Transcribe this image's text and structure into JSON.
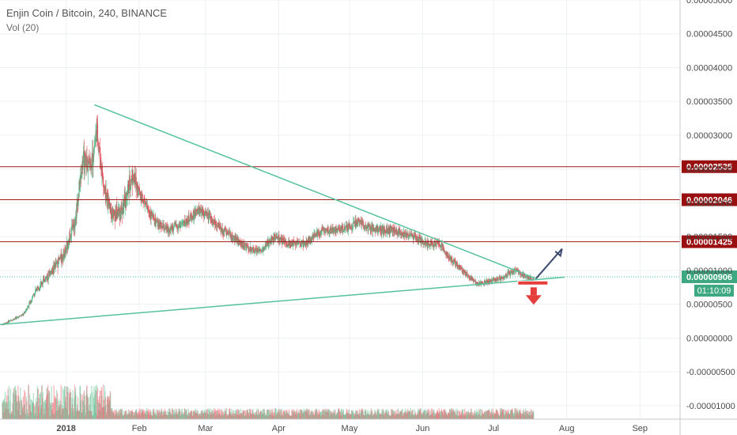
{
  "header": {
    "title": "Enjin Coin / Bitcoin, 240, BINANCE",
    "vol_label": "Vol (20)"
  },
  "colors": {
    "up": "#53b987",
    "down": "#eb4d5c",
    "trend": "#56c29c",
    "level": "#9c1a1a",
    "level_label_bg": "#990f0f",
    "price_label_bg": "#3ea882",
    "grid": "#eef1f4",
    "up_arrow": "#3c4a70",
    "down_arrow": "#e63d3d"
  },
  "chart_data": {
    "type": "candlestick",
    "ylim": [
      -1.2e-06,
      5e-06
    ],
    "y_ticks": [
      "0.00005000",
      "0.00004500",
      "0.00004000",
      "0.00003500",
      "0.00003000",
      "0.00002500",
      "0.00002000",
      "0.00001500",
      "0.00001000",
      "0.00000500",
      "0.00000000",
      "-0.00000500",
      "-0.00001000"
    ],
    "y_tick_values": [
      5e-06,
      4.5e-06,
      4e-06,
      3.5e-06,
      3e-06,
      2.5e-06,
      2e-06,
      1.5e-06,
      1e-06,
      5e-07,
      0.0,
      -5e-07,
      -1e-06
    ],
    "x_ticks": [
      "2018",
      "Feb",
      "Mar",
      "Apr",
      "May",
      "Jun",
      "Jul",
      "Aug",
      "Sep"
    ],
    "x_tick_dates": [
      "2018-01-01",
      "2018-02-01",
      "2018-03-01",
      "2018-04-01",
      "2018-05-01",
      "2018-06-01",
      "2018-07-01",
      "2018-08-01",
      "2018-09-01"
    ],
    "x_range": [
      "2017-12-04",
      "2018-09-18"
    ],
    "price_path": [
      [
        "2017-12-05",
        2e-07
      ],
      [
        "2017-12-14",
        3.5e-07
      ],
      [
        "2017-12-20",
        7.5e-07
      ],
      [
        "2017-12-26",
        1e-06
      ],
      [
        "2018-01-01",
        1.3e-06
      ],
      [
        "2018-01-05",
        1.8e-06
      ],
      [
        "2018-01-08",
        2.6e-06
      ],
      [
        "2018-01-12",
        2.6e-06
      ],
      [
        "2018-01-14",
        3.1e-06
      ],
      [
        "2018-01-17",
        2.2e-06
      ],
      [
        "2018-01-21",
        1.8e-06
      ],
      [
        "2018-01-25",
        1.9e-06
      ],
      [
        "2018-01-29",
        2.4e-06
      ],
      [
        "2018-02-03",
        2e-06
      ],
      [
        "2018-02-08",
        1.7e-06
      ],
      [
        "2018-02-13",
        1.6e-06
      ],
      [
        "2018-02-20",
        1.7e-06
      ],
      [
        "2018-02-27",
        1.9e-06
      ],
      [
        "2018-03-05",
        1.7e-06
      ],
      [
        "2018-03-12",
        1.5e-06
      ],
      [
        "2018-03-20",
        1.3e-06
      ],
      [
        "2018-03-25",
        1.3e-06
      ],
      [
        "2018-03-30",
        1.5e-06
      ],
      [
        "2018-04-05",
        1.4e-06
      ],
      [
        "2018-04-12",
        1.4e-06
      ],
      [
        "2018-04-20",
        1.6e-06
      ],
      [
        "2018-04-28",
        1.6e-06
      ],
      [
        "2018-05-05",
        1.7e-06
      ],
      [
        "2018-05-12",
        1.6e-06
      ],
      [
        "2018-05-20",
        1.6e-06
      ],
      [
        "2018-05-28",
        1.5e-06
      ],
      [
        "2018-06-03",
        1.4e-06
      ],
      [
        "2018-06-08",
        1.4e-06
      ],
      [
        "2018-06-12",
        1.2e-06
      ],
      [
        "2018-06-18",
        1e-06
      ],
      [
        "2018-06-24",
        8e-07
      ],
      [
        "2018-06-30",
        8.5e-07
      ],
      [
        "2018-07-05",
        9e-07
      ],
      [
        "2018-07-10",
        1e-06
      ],
      [
        "2018-07-15",
        9e-07
      ],
      [
        "2018-07-18",
        8.5e-07
      ]
    ],
    "horizontal_levels": [
      {
        "value": 2.535e-06,
        "label": "0.00002535"
      },
      {
        "value": 2.046e-06,
        "label": "0.00002046"
      },
      {
        "value": 1.425e-06,
        "label": "0.00001425"
      }
    ],
    "current_price": {
      "value": 9.06e-07,
      "label": "0.00000906",
      "countdown": "01:10:09"
    },
    "trendlines": [
      {
        "from": [
          "2018-01-13",
          3.45e-06
        ],
        "to": [
          "2018-07-19",
          8.8e-07
        ]
      },
      {
        "from": [
          "2017-12-04",
          2e-07
        ],
        "to": [
          "2018-07-31",
          9e-07
        ]
      }
    ],
    "annotations": [
      {
        "type": "arrow-up",
        "from": [
          "2018-07-19",
          8.8e-07
        ],
        "to": [
          "2018-07-30",
          1.32e-06
        ]
      },
      {
        "type": "arrow-down",
        "at": [
          "2018-07-19",
          6.8e-07
        ]
      }
    ]
  }
}
